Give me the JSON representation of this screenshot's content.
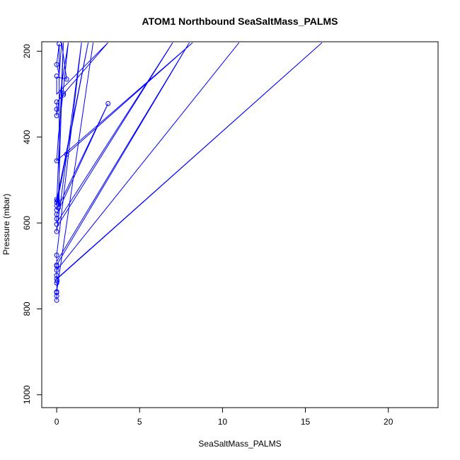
{
  "chart_data": {
    "type": "line",
    "title": "ATOM1 Northbound SeaSaltMass_PALMS",
    "xlabel": "SeaSaltMass_PALMS",
    "ylabel": "Pressure (mbar)",
    "xlim": [
      -0.9,
      23.0
    ],
    "ylim": [
      1030,
      178
    ],
    "y_reversed": true,
    "xticks": [
      0,
      5,
      10,
      15,
      20
    ],
    "yticks": [
      200,
      400,
      600,
      800,
      1000
    ],
    "grid": false,
    "series": [
      {
        "color": "#0000ff",
        "points": [
          [
            0.0,
            780
          ],
          [
            0.0,
            770
          ],
          [
            0.0,
            760
          ],
          [
            2.2,
            180
          ],
          [
            0.0,
            760
          ],
          [
            0.02,
            740
          ],
          [
            0.03,
            730
          ],
          [
            16.0,
            180
          ],
          [
            0.0,
            730
          ],
          [
            0.0,
            720
          ],
          [
            0.0,
            710
          ],
          [
            11.0,
            180
          ],
          [
            0.0,
            710
          ],
          [
            0.0,
            700
          ],
          [
            0.0,
            698
          ],
          [
            8.0,
            180
          ],
          [
            0.0,
            690
          ],
          [
            0.0,
            675
          ],
          [
            1.5,
            180
          ],
          [
            0.0,
            620
          ],
          [
            0.0,
            610
          ],
          [
            7.0,
            180
          ],
          [
            0.0,
            600
          ],
          [
            0.0,
            590
          ],
          [
            0.0,
            580
          ],
          [
            3.1,
            322
          ],
          [
            0.0,
            570
          ],
          [
            0.1,
            560
          ],
          [
            0.1,
            555
          ],
          [
            0.4,
            180
          ],
          [
            0.0,
            555
          ],
          [
            0.0,
            550
          ],
          [
            0.05,
            548
          ],
          [
            1.9,
            180
          ],
          [
            0.0,
            548
          ],
          [
            0.6,
            440
          ],
          [
            8.2,
            180
          ],
          [
            0.0,
            455
          ],
          [
            0.1,
            400
          ],
          [
            0.7,
            180
          ],
          [
            0.0,
            350
          ],
          [
            0.0,
            335
          ],
          [
            0.0,
            320
          ],
          [
            0.4,
            300
          ],
          [
            3.1,
            180
          ],
          [
            0.0,
            300
          ],
          [
            0.0,
            260
          ],
          [
            0.6,
            265
          ],
          [
            0.3,
            180
          ],
          [
            0.15,
            255
          ],
          [
            0.0,
            230
          ],
          [
            0.15,
            183
          ],
          [
            0.15,
            210
          ],
          [
            0.15,
            380
          ],
          [
            0.15,
            560
          ],
          [
            0.05,
            548
          ],
          [
            0.0,
            545
          ]
        ]
      }
    ],
    "markers": [
      [
        0.15,
        183
      ],
      [
        0.0,
        231
      ],
      [
        0.0,
        258
      ],
      [
        0.6,
        265
      ],
      [
        0.4,
        298
      ],
      [
        0.4,
        302
      ],
      [
        3.1,
        322
      ],
      [
        0.0,
        318
      ],
      [
        0.0,
        335
      ],
      [
        0.0,
        350
      ],
      [
        0.6,
        440
      ],
      [
        0.0,
        455
      ],
      [
        0.0,
        545
      ],
      [
        0.05,
        548
      ],
      [
        0.0,
        552
      ],
      [
        0.1,
        556
      ],
      [
        0.0,
        560
      ],
      [
        0.1,
        565
      ],
      [
        0.0,
        570
      ],
      [
        0.0,
        580
      ],
      [
        0.0,
        590
      ],
      [
        0.0,
        603
      ],
      [
        0.0,
        620
      ],
      [
        0.0,
        675
      ],
      [
        0.0,
        698
      ],
      [
        0.0,
        700
      ],
      [
        0.0,
        710
      ],
      [
        0.0,
        722
      ],
      [
        0.0,
        730
      ],
      [
        0.03,
        735
      ],
      [
        0.0,
        740
      ],
      [
        0.0,
        760
      ],
      [
        0.0,
        762
      ],
      [
        0.0,
        770
      ],
      [
        0.0,
        780
      ]
    ]
  }
}
